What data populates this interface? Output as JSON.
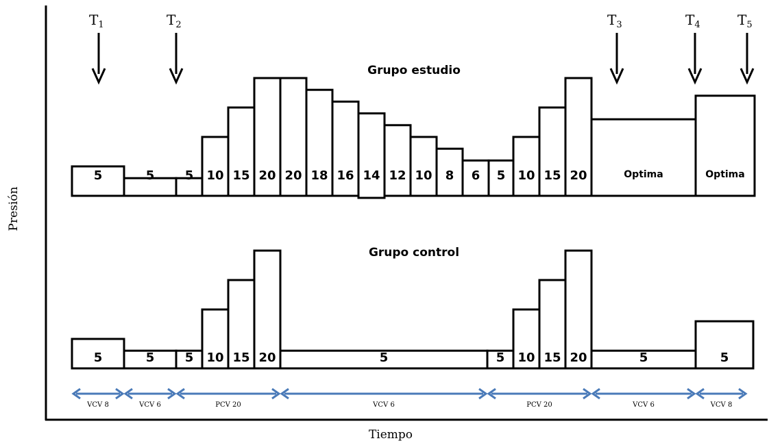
{
  "colors": {
    "arrow_blue": "#4a7ab8",
    "stroke": "#000000"
  },
  "axes": {
    "y_label": "Presión",
    "x_label": "Tiempo"
  },
  "time_points": [
    {
      "main": "T",
      "sub": "1"
    },
    {
      "main": "T",
      "sub": "2"
    },
    {
      "main": "T",
      "sub": "3"
    },
    {
      "main": "T",
      "sub": "4"
    },
    {
      "main": "T",
      "sub": "5"
    }
  ],
  "study_group": {
    "title": "Grupo estudio",
    "bars": [
      {
        "label": "5",
        "value": 5
      },
      {
        "label": "5",
        "value": 3
      },
      {
        "label": "5",
        "value": 3
      },
      {
        "label": "10",
        "value": 10
      },
      {
        "label": "15",
        "value": 15
      },
      {
        "label": "20",
        "value": 20
      },
      {
        "label": "20",
        "value": 20
      },
      {
        "label": "18",
        "value": 18
      },
      {
        "label": "16",
        "value": 16
      },
      {
        "label": "14",
        "value": 14
      },
      {
        "label": "12",
        "value": 12
      },
      {
        "label": "10",
        "value": 10
      },
      {
        "label": "8",
        "value": 8
      },
      {
        "label": "6",
        "value": 6
      },
      {
        "label": "5",
        "value": 6
      },
      {
        "label": "10",
        "value": 10
      },
      {
        "label": "15",
        "value": 15
      },
      {
        "label": "20",
        "value": 20
      },
      {
        "label": "Optima",
        "value": 13
      },
      {
        "label": "Optima",
        "value": 17
      }
    ]
  },
  "control_group": {
    "title": "Grupo control",
    "bars": [
      {
        "label": "5",
        "value": 5
      },
      {
        "label": "5",
        "value": 3
      },
      {
        "label": "5",
        "value": 3
      },
      {
        "label": "10",
        "value": 10
      },
      {
        "label": "15",
        "value": 15
      },
      {
        "label": "20",
        "value": 20
      },
      {
        "label": "5",
        "value": 3
      },
      {
        "label": "5",
        "value": 3
      },
      {
        "label": "10",
        "value": 10
      },
      {
        "label": "15",
        "value": 15
      },
      {
        "label": "20",
        "value": 20
      },
      {
        "label": "5",
        "value": 3
      },
      {
        "label": "5",
        "value": 8
      }
    ]
  },
  "ventilation_phases": [
    "VCV 8",
    "VCV 6",
    "PCV 20",
    "VCV 6",
    "PCV 20",
    "VCV 6",
    "VCV 8"
  ]
}
